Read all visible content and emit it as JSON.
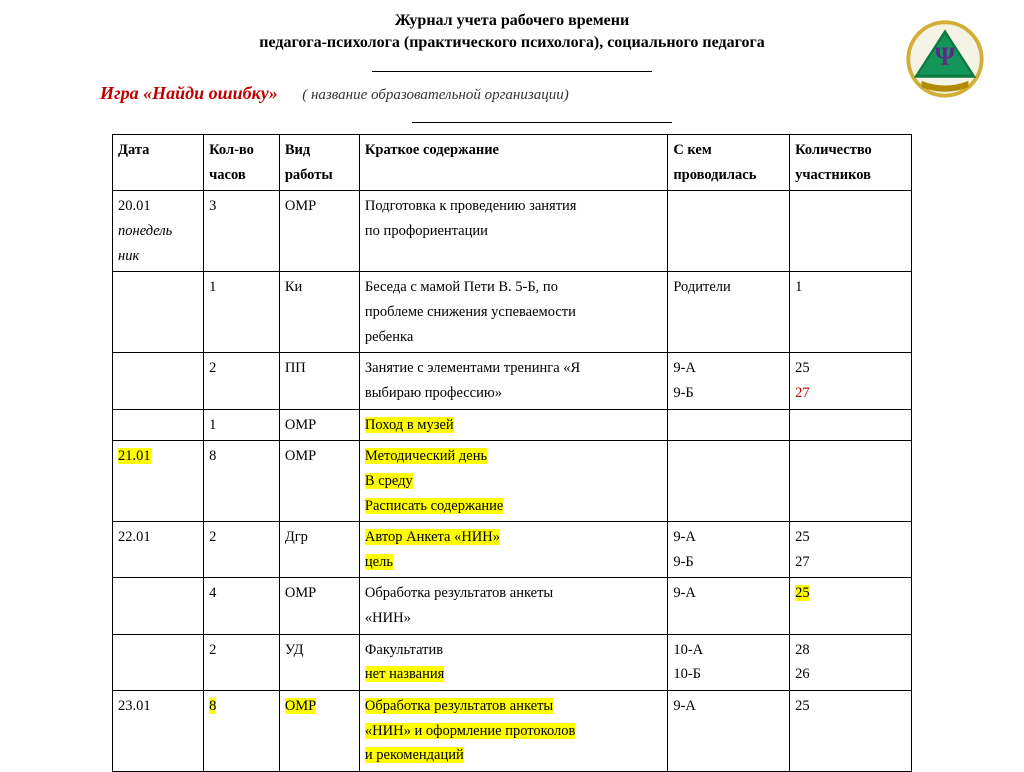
{
  "header": {
    "line1": "Журнал учета рабочего времени",
    "line2": "педагога-психолога (практического психолога), социального педагога"
  },
  "game_title": "Игра «Найди ошибку»",
  "org_label": "( название образовательной организации)",
  "columns": {
    "date": "Дата",
    "hours": "Кол-во часов",
    "type": "Вид работы",
    "desc": "Краткое содержание",
    "whom": "С кем проводилась",
    "count": "Количество участников"
  },
  "rows": [
    {
      "date": [
        {
          "t": "20.01"
        },
        {
          "t": "понедель",
          "i": true
        },
        {
          "t": "ник",
          "i": true
        }
      ],
      "hours": [
        {
          "t": "3"
        }
      ],
      "type": [
        {
          "t": "ОМР"
        }
      ],
      "desc": [
        {
          "t": "Подготовка к проведению занятия"
        },
        {
          "t": "по профориентации"
        }
      ],
      "whom": [],
      "count": []
    },
    {
      "date": [],
      "hours": [
        {
          "t": "1"
        }
      ],
      "type": [
        {
          "t": "Ки"
        }
      ],
      "desc": [
        {
          "t": "Беседа с мамой Пети В. 5-Б, по"
        },
        {
          "t": "проблеме снижения успеваемости"
        },
        {
          "t": "ребенка"
        }
      ],
      "whom": [
        {
          "t": "Родители"
        }
      ],
      "count": [
        {
          "t": "1"
        }
      ]
    },
    {
      "date": [],
      "hours": [
        {
          "t": "2"
        }
      ],
      "type": [
        {
          "t": "ПП"
        }
      ],
      "desc": [
        {
          "t": "Занятие с элементами тренинга «Я"
        },
        {
          "t": "выбираю профессию»"
        }
      ],
      "whom": [
        {
          "t": "9-А"
        },
        {
          "t": "9-Б"
        }
      ],
      "count": [
        {
          "t": "25"
        },
        {
          "t": "27",
          "red": true
        }
      ]
    },
    {
      "date": [],
      "hours": [
        {
          "t": "1"
        }
      ],
      "type": [
        {
          "t": "ОМР"
        }
      ],
      "desc": [
        {
          "t": "Поход в музей",
          "hl": true
        }
      ],
      "whom": [],
      "count": []
    },
    {
      "date": [
        {
          "t": "21.01",
          "hl": true
        }
      ],
      "hours": [
        {
          "t": "8"
        }
      ],
      "type": [
        {
          "t": "ОМР"
        }
      ],
      "desc": [
        {
          "t": "Методический день",
          "hl": true
        },
        {
          "t": "В среду",
          "hl": true
        },
        {
          "t": "Расписать содержание",
          "hl": true
        }
      ],
      "whom": [],
      "count": []
    },
    {
      "date": [
        {
          "t": "22.01"
        }
      ],
      "hours": [
        {
          "t": "2"
        }
      ],
      "type": [
        {
          "t": "Дгр"
        }
      ],
      "desc": [
        {
          "t": " Автор Анкета «НИН»",
          "hl": true
        },
        {
          "t": "цель",
          "hl": true
        }
      ],
      "whom": [
        {
          "t": "9-А"
        },
        {
          "t": "9-Б"
        }
      ],
      "count": [
        {
          "t": "25"
        },
        {
          "t": "27"
        }
      ]
    },
    {
      "date": [],
      "hours": [
        {
          "t": "4"
        }
      ],
      "type": [
        {
          "t": "ОМР"
        }
      ],
      "desc": [
        {
          "t": "Обработка результатов анкеты"
        },
        {
          "t": "«НИН»"
        }
      ],
      "whom": [
        {
          "t": "9-А"
        }
      ],
      "count": [
        {
          "t": "25",
          "hl": true
        }
      ]
    },
    {
      "date": [],
      "hours": [
        {
          "t": "2"
        }
      ],
      "type": [
        {
          "t": "УД"
        }
      ],
      "desc": [
        {
          "t": "Факультатив"
        },
        {
          "t": " нет названия",
          "hl": true
        }
      ],
      "whom": [
        {
          "t": "10-А"
        },
        {
          "t": "10-Б"
        }
      ],
      "count": [
        {
          "t": "28"
        },
        {
          "t": "26"
        }
      ]
    },
    {
      "date": [
        {
          "t": "23.01"
        }
      ],
      "hours": [
        {
          "t": "8",
          "hl": true
        }
      ],
      "type": [
        {
          "t": "ОМР",
          "hl": true
        }
      ],
      "desc": [
        {
          "t": "Обработка результатов анкеты",
          "hl": true
        },
        {
          "t": "«НИН» и оформление  протоколов",
          "hl": true
        },
        {
          "t": "и рекомендаций",
          "hl": true
        }
      ],
      "whom": [
        {
          "t": "9-А"
        }
      ],
      "count": [
        {
          "t": "25"
        }
      ]
    }
  ],
  "logo": {
    "ring": "#d4af37",
    "triangle": "#0a7a3f",
    "psi": "#5b2a86",
    "ribbon": "#b08a00"
  }
}
